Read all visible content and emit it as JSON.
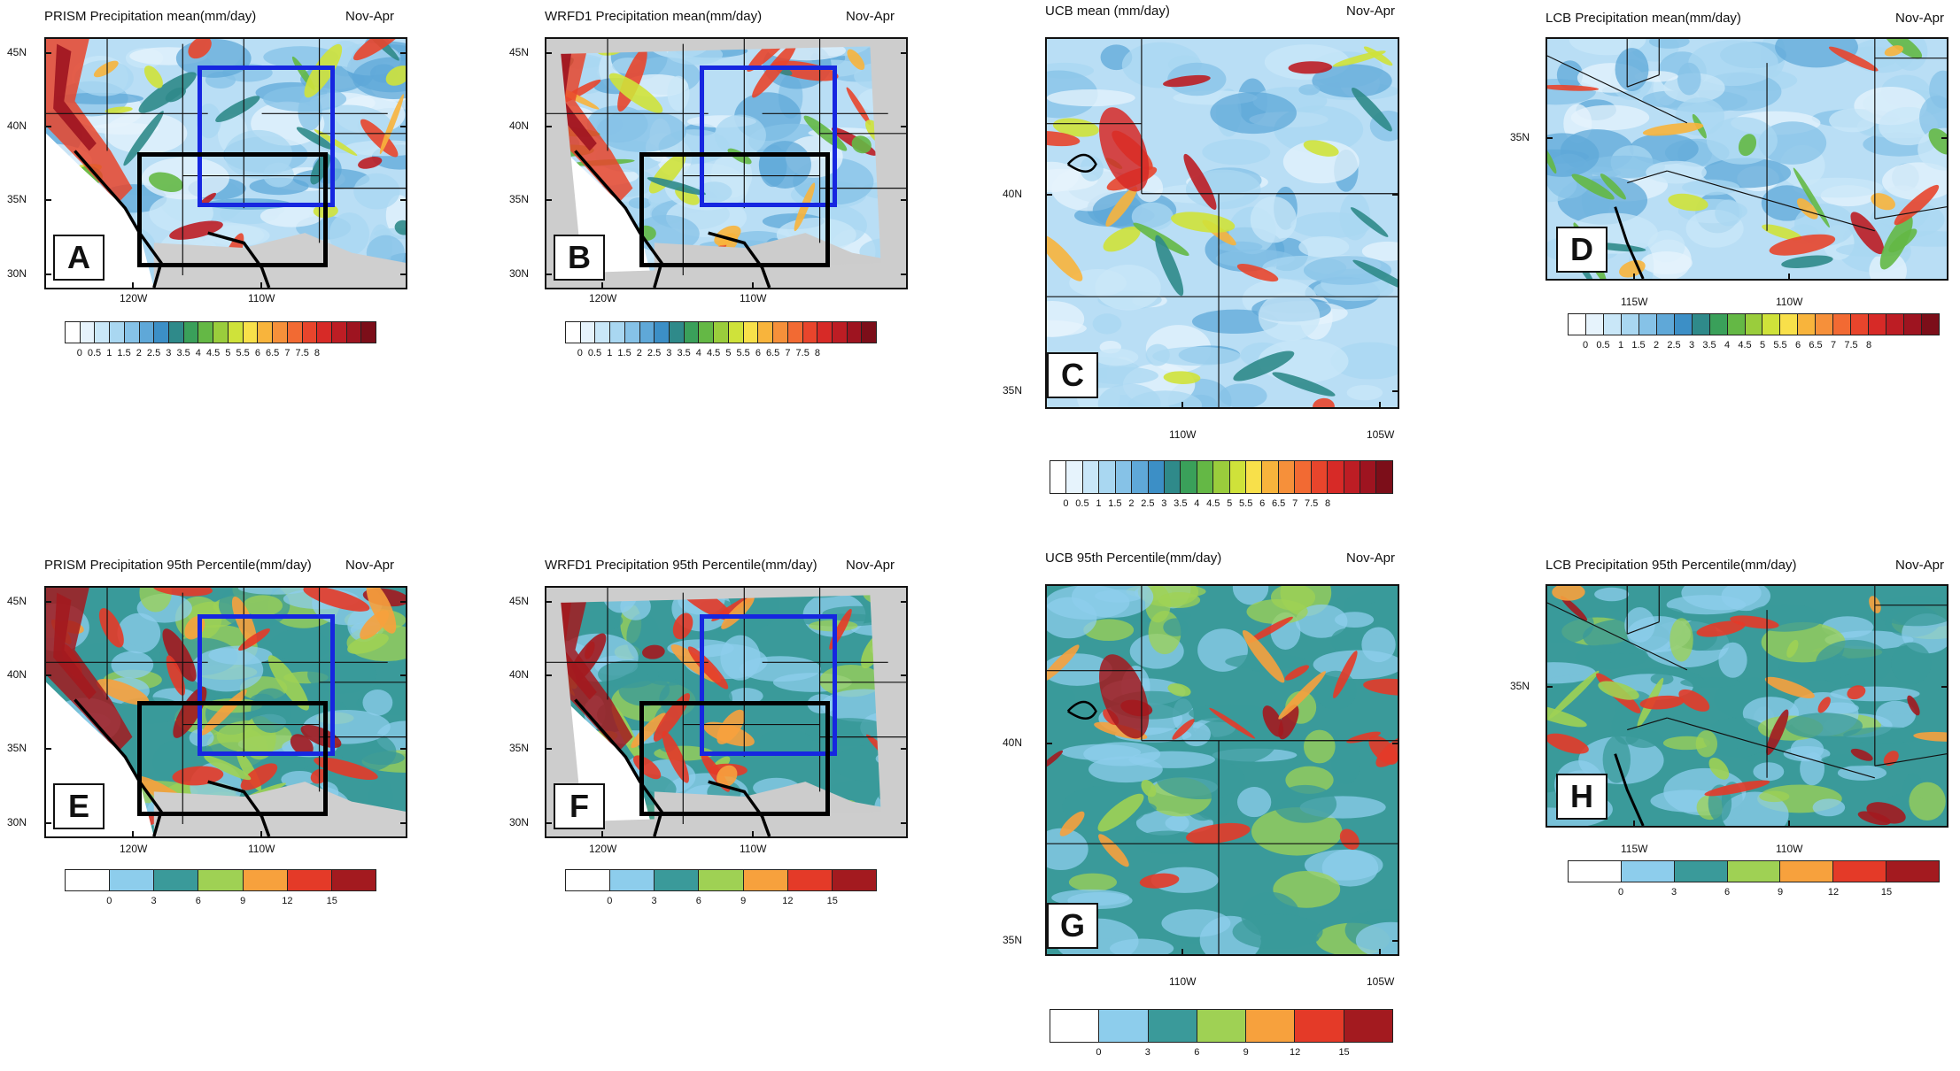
{
  "panels": [
    {
      "letter": "A",
      "title": "PRISM Precipitation mean(mm/day)",
      "season": "Nov-Apr",
      "kind": "mean",
      "region": "wus",
      "x_ticks": [
        "120W",
        "110W"
      ],
      "y_ticks": [
        "45N",
        "40N",
        "35N",
        "30N"
      ],
      "boxes": true,
      "grey_frame": false,
      "colorbar": "mean"
    },
    {
      "letter": "B",
      "title": "WRFD1 Precipitation mean(mm/day)",
      "season": "Nov-Apr",
      "kind": "mean",
      "region": "wus",
      "x_ticks": [
        "120W",
        "110W"
      ],
      "y_ticks": [
        "45N",
        "40N",
        "35N",
        "30N"
      ],
      "boxes": true,
      "grey_frame": true,
      "colorbar": "mean"
    },
    {
      "letter": "C",
      "title": "UCB  mean (mm/day)",
      "season": "Nov-Apr",
      "kind": "mean",
      "region": "ucb",
      "x_ticks": [
        "110W",
        "105W"
      ],
      "y_ticks": [
        "40N",
        "35N"
      ],
      "boxes": false,
      "grey_frame": false,
      "colorbar": "mean"
    },
    {
      "letter": "D",
      "title": "LCB Precipitation mean(mm/day)",
      "season": "Nov-Apr",
      "kind": "mean",
      "region": "lcb",
      "x_ticks": [
        "115W",
        "110W"
      ],
      "y_ticks": [
        "35N"
      ],
      "boxes": false,
      "grey_frame": false,
      "colorbar": "mean"
    },
    {
      "letter": "E",
      "title": "PRISM Precipitation 95th Percentile(mm/day)",
      "season": "Nov-Apr",
      "kind": "p95",
      "region": "wus",
      "x_ticks": [
        "120W",
        "110W"
      ],
      "y_ticks": [
        "45N",
        "40N",
        "35N",
        "30N"
      ],
      "boxes": true,
      "grey_frame": false,
      "colorbar": "p95"
    },
    {
      "letter": "F",
      "title": "WRFD1 Precipitation 95th Percentile(mm/day)",
      "season": "Nov-Apr",
      "kind": "p95",
      "region": "wus",
      "x_ticks": [
        "120W",
        "110W"
      ],
      "y_ticks": [
        "45N",
        "40N",
        "35N",
        "30N"
      ],
      "boxes": true,
      "grey_frame": true,
      "colorbar": "p95"
    },
    {
      "letter": "G",
      "title": "UCB 95th Percentile(mm/day)",
      "season": "Nov-Apr",
      "kind": "p95",
      "region": "ucb",
      "x_ticks": [
        "110W",
        "105W"
      ],
      "y_ticks": [
        "40N",
        "35N"
      ],
      "boxes": false,
      "grey_frame": false,
      "colorbar": "p95"
    },
    {
      "letter": "H",
      "title": "LCB Precipitation 95th Percentile(mm/day)",
      "season": "Nov-Apr",
      "kind": "p95",
      "region": "lcb",
      "x_ticks": [
        "115W",
        "110W"
      ],
      "y_ticks": [
        "35N"
      ],
      "boxes": false,
      "grey_frame": false,
      "colorbar": "p95"
    }
  ],
  "colorbars": {
    "mean": {
      "colors": [
        "#ffffff",
        "#e6f3fc",
        "#c9e7f8",
        "#a9d7f1",
        "#86c2e7",
        "#5fa8d8",
        "#3c8fc6",
        "#2f8a8a",
        "#3aa05a",
        "#64b845",
        "#9acd3c",
        "#cfe23a",
        "#f8e04a",
        "#f8b43c",
        "#f6903a",
        "#f26a33",
        "#e8452c",
        "#d72a27",
        "#bd1d24",
        "#9e1420",
        "#7c0e19"
      ],
      "labels": [
        "0",
        "0.5",
        "1",
        "1.5",
        "2",
        "2.5",
        "3",
        "3.5",
        "4",
        "4.5",
        "5",
        "5.5",
        "6",
        "6.5",
        "7",
        "7.5",
        "8"
      ]
    },
    "p95": {
      "colors": [
        "#ffffff",
        "#8dcdec",
        "#3a9a9a",
        "#9fd154",
        "#f7a13d",
        "#e43a28",
        "#a31a1f"
      ],
      "labels": [
        "0",
        "3",
        "6",
        "9",
        "12",
        "15"
      ]
    }
  }
}
